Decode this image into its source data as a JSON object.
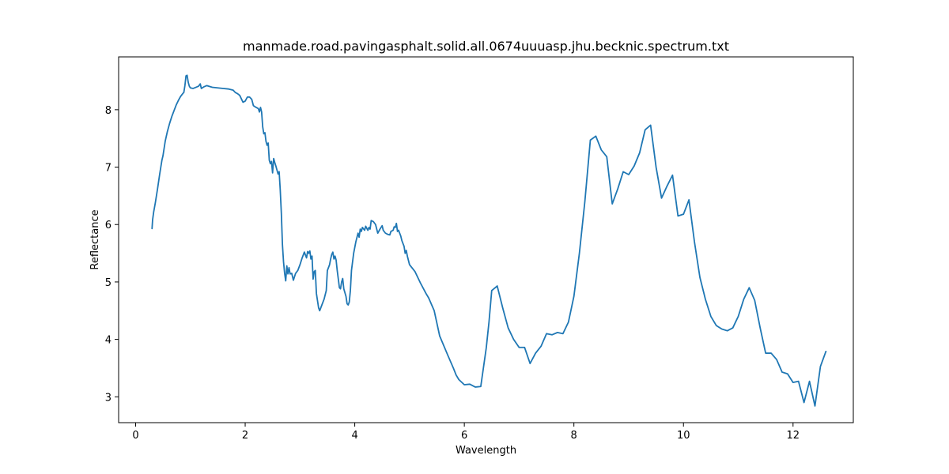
{
  "chart_data": {
    "type": "line",
    "title": "manmade.road.pavingasphalt.solid.all.0674uuuasp.jhu.becknic.spectrum.txt",
    "xlabel": "Wavelength",
    "ylabel": "Reflectance",
    "xlim": [
      -0.31,
      13.1
    ],
    "ylim": [
      2.55,
      8.92
    ],
    "xticks": [
      0,
      2,
      4,
      6,
      8,
      10,
      12
    ],
    "yticks": [
      3,
      4,
      5,
      6,
      7,
      8
    ],
    "grid": false,
    "series": [
      {
        "color": "#1f77b4",
        "points": [
          [
            0.3,
            5.93
          ],
          [
            0.31,
            6.08
          ],
          [
            0.33,
            6.22
          ],
          [
            0.36,
            6.38
          ],
          [
            0.4,
            6.62
          ],
          [
            0.44,
            6.88
          ],
          [
            0.48,
            7.12
          ],
          [
            0.5,
            7.2
          ],
          [
            0.54,
            7.45
          ],
          [
            0.58,
            7.62
          ],
          [
            0.62,
            7.76
          ],
          [
            0.66,
            7.88
          ],
          [
            0.7,
            7.98
          ],
          [
            0.74,
            8.08
          ],
          [
            0.78,
            8.16
          ],
          [
            0.82,
            8.23
          ],
          [
            0.86,
            8.28
          ],
          [
            0.88,
            8.3
          ],
          [
            0.9,
            8.42
          ],
          [
            0.92,
            8.59
          ],
          [
            0.94,
            8.6
          ],
          [
            0.96,
            8.48
          ],
          [
            0.98,
            8.41
          ],
          [
            1.0,
            8.38
          ],
          [
            1.05,
            8.37
          ],
          [
            1.1,
            8.39
          ],
          [
            1.15,
            8.41
          ],
          [
            1.18,
            8.45
          ],
          [
            1.2,
            8.37
          ],
          [
            1.25,
            8.4
          ],
          [
            1.3,
            8.42
          ],
          [
            1.4,
            8.39
          ],
          [
            1.5,
            8.38
          ],
          [
            1.6,
            8.37
          ],
          [
            1.7,
            8.36
          ],
          [
            1.78,
            8.34
          ],
          [
            1.82,
            8.3
          ],
          [
            1.86,
            8.28
          ],
          [
            1.9,
            8.25
          ],
          [
            1.93,
            8.19
          ],
          [
            1.96,
            8.13
          ],
          [
            2.0,
            8.15
          ],
          [
            2.04,
            8.22
          ],
          [
            2.08,
            8.22
          ],
          [
            2.12,
            8.18
          ],
          [
            2.15,
            8.07
          ],
          [
            2.2,
            8.04
          ],
          [
            2.24,
            8.02
          ],
          [
            2.26,
            7.96
          ],
          [
            2.28,
            8.04
          ],
          [
            2.3,
            7.96
          ],
          [
            2.32,
            7.7
          ],
          [
            2.34,
            7.58
          ],
          [
            2.36,
            7.6
          ],
          [
            2.38,
            7.45
          ],
          [
            2.4,
            7.38
          ],
          [
            2.42,
            7.42
          ],
          [
            2.44,
            7.12
          ],
          [
            2.46,
            7.06
          ],
          [
            2.48,
            7.1
          ],
          [
            2.5,
            6.9
          ],
          [
            2.52,
            7.15
          ],
          [
            2.54,
            7.08
          ],
          [
            2.56,
            7.02
          ],
          [
            2.58,
            6.95
          ],
          [
            2.6,
            6.88
          ],
          [
            2.62,
            6.92
          ],
          [
            2.64,
            6.6
          ],
          [
            2.66,
            6.2
          ],
          [
            2.68,
            5.65
          ],
          [
            2.7,
            5.35
          ],
          [
            2.72,
            5.15
          ],
          [
            2.74,
            5.02
          ],
          [
            2.76,
            5.28
          ],
          [
            2.78,
            5.14
          ],
          [
            2.8,
            5.25
          ],
          [
            2.82,
            5.14
          ],
          [
            2.85,
            5.15
          ],
          [
            2.88,
            5.03
          ],
          [
            2.92,
            5.15
          ],
          [
            2.96,
            5.2
          ],
          [
            3.0,
            5.3
          ],
          [
            3.04,
            5.42
          ],
          [
            3.08,
            5.52
          ],
          [
            3.12,
            5.42
          ],
          [
            3.14,
            5.53
          ],
          [
            3.16,
            5.5
          ],
          [
            3.18,
            5.54
          ],
          [
            3.2,
            5.4
          ],
          [
            3.22,
            5.45
          ],
          [
            3.24,
            5.05
          ],
          [
            3.26,
            5.18
          ],
          [
            3.28,
            5.2
          ],
          [
            3.3,
            4.8
          ],
          [
            3.34,
            4.55
          ],
          [
            3.36,
            4.5
          ],
          [
            3.4,
            4.6
          ],
          [
            3.44,
            4.7
          ],
          [
            3.48,
            4.85
          ],
          [
            3.5,
            5.2
          ],
          [
            3.54,
            5.3
          ],
          [
            3.56,
            5.4
          ],
          [
            3.58,
            5.48
          ],
          [
            3.6,
            5.52
          ],
          [
            3.62,
            5.4
          ],
          [
            3.64,
            5.45
          ],
          [
            3.66,
            5.38
          ],
          [
            3.68,
            5.2
          ],
          [
            3.7,
            5.05
          ],
          [
            3.72,
            4.9
          ],
          [
            3.74,
            4.88
          ],
          [
            3.76,
            5.0
          ],
          [
            3.78,
            5.06
          ],
          [
            3.8,
            4.88
          ],
          [
            3.84,
            4.75
          ],
          [
            3.86,
            4.62
          ],
          [
            3.88,
            4.6
          ],
          [
            3.9,
            4.65
          ],
          [
            3.92,
            4.85
          ],
          [
            3.94,
            5.2
          ],
          [
            3.98,
            5.5
          ],
          [
            4.02,
            5.7
          ],
          [
            4.06,
            5.85
          ],
          [
            4.08,
            5.78
          ],
          [
            4.1,
            5.92
          ],
          [
            4.12,
            5.88
          ],
          [
            4.14,
            5.95
          ],
          [
            4.18,
            5.9
          ],
          [
            4.2,
            5.97
          ],
          [
            4.24,
            5.9
          ],
          [
            4.26,
            5.95
          ],
          [
            4.28,
            5.92
          ],
          [
            4.3,
            6.07
          ],
          [
            4.34,
            6.05
          ],
          [
            4.38,
            6.0
          ],
          [
            4.42,
            5.85
          ],
          [
            4.46,
            5.92
          ],
          [
            4.5,
            5.98
          ],
          [
            4.52,
            5.9
          ],
          [
            4.56,
            5.85
          ],
          [
            4.6,
            5.83
          ],
          [
            4.64,
            5.82
          ],
          [
            4.66,
            5.88
          ],
          [
            4.7,
            5.9
          ],
          [
            4.72,
            5.96
          ],
          [
            4.74,
            5.95
          ],
          [
            4.76,
            6.02
          ],
          [
            4.78,
            5.88
          ],
          [
            4.8,
            5.9
          ],
          [
            4.84,
            5.8
          ],
          [
            4.86,
            5.72
          ],
          [
            4.9,
            5.62
          ],
          [
            4.92,
            5.5
          ],
          [
            4.94,
            5.55
          ],
          [
            4.96,
            5.45
          ],
          [
            5.0,
            5.3
          ],
          [
            5.1,
            5.18
          ],
          [
            5.2,
            4.98
          ],
          [
            5.3,
            4.8
          ],
          [
            5.35,
            4.72
          ],
          [
            5.45,
            4.5
          ],
          [
            5.55,
            4.06
          ],
          [
            5.7,
            3.72
          ],
          [
            5.8,
            3.5
          ],
          [
            5.85,
            3.38
          ],
          [
            5.9,
            3.3
          ],
          [
            6.0,
            3.21
          ],
          [
            6.1,
            3.22
          ],
          [
            6.2,
            3.17
          ],
          [
            6.3,
            3.18
          ],
          [
            6.4,
            3.85
          ],
          [
            6.45,
            4.3
          ],
          [
            6.5,
            4.85
          ],
          [
            6.6,
            4.93
          ],
          [
            6.7,
            4.55
          ],
          [
            6.8,
            4.2
          ],
          [
            6.9,
            4.0
          ],
          [
            7.0,
            3.86
          ],
          [
            7.1,
            3.86
          ],
          [
            7.2,
            3.58
          ],
          [
            7.3,
            3.76
          ],
          [
            7.4,
            3.88
          ],
          [
            7.5,
            4.1
          ],
          [
            7.6,
            4.08
          ],
          [
            7.7,
            4.12
          ],
          [
            7.8,
            4.1
          ],
          [
            7.9,
            4.3
          ],
          [
            8.0,
            4.75
          ],
          [
            8.1,
            5.5
          ],
          [
            8.2,
            6.4
          ],
          [
            8.3,
            7.47
          ],
          [
            8.4,
            7.54
          ],
          [
            8.5,
            7.3
          ],
          [
            8.6,
            7.18
          ],
          [
            8.7,
            6.36
          ],
          [
            8.8,
            6.62
          ],
          [
            8.9,
            6.92
          ],
          [
            9.0,
            6.87
          ],
          [
            9.1,
            7.02
          ],
          [
            9.2,
            7.25
          ],
          [
            9.3,
            7.65
          ],
          [
            9.4,
            7.73
          ],
          [
            9.5,
            7.0
          ],
          [
            9.6,
            6.46
          ],
          [
            9.7,
            6.67
          ],
          [
            9.8,
            6.86
          ],
          [
            9.9,
            6.15
          ],
          [
            10.0,
            6.18
          ],
          [
            10.1,
            6.43
          ],
          [
            10.2,
            5.7
          ],
          [
            10.3,
            5.08
          ],
          [
            10.4,
            4.7
          ],
          [
            10.5,
            4.4
          ],
          [
            10.6,
            4.24
          ],
          [
            10.7,
            4.18
          ],
          [
            10.8,
            4.15
          ],
          [
            10.9,
            4.2
          ],
          [
            11.0,
            4.4
          ],
          [
            11.1,
            4.7
          ],
          [
            11.2,
            4.9
          ],
          [
            11.3,
            4.68
          ],
          [
            11.4,
            4.2
          ],
          [
            11.5,
            3.76
          ],
          [
            11.6,
            3.76
          ],
          [
            11.7,
            3.65
          ],
          [
            11.8,
            3.43
          ],
          [
            11.9,
            3.4
          ],
          [
            12.0,
            3.25
          ],
          [
            12.1,
            3.27
          ],
          [
            12.2,
            2.9
          ],
          [
            12.3,
            3.27
          ],
          [
            12.4,
            2.84
          ],
          [
            12.5,
            3.53
          ],
          [
            12.6,
            3.79
          ]
        ]
      }
    ]
  }
}
